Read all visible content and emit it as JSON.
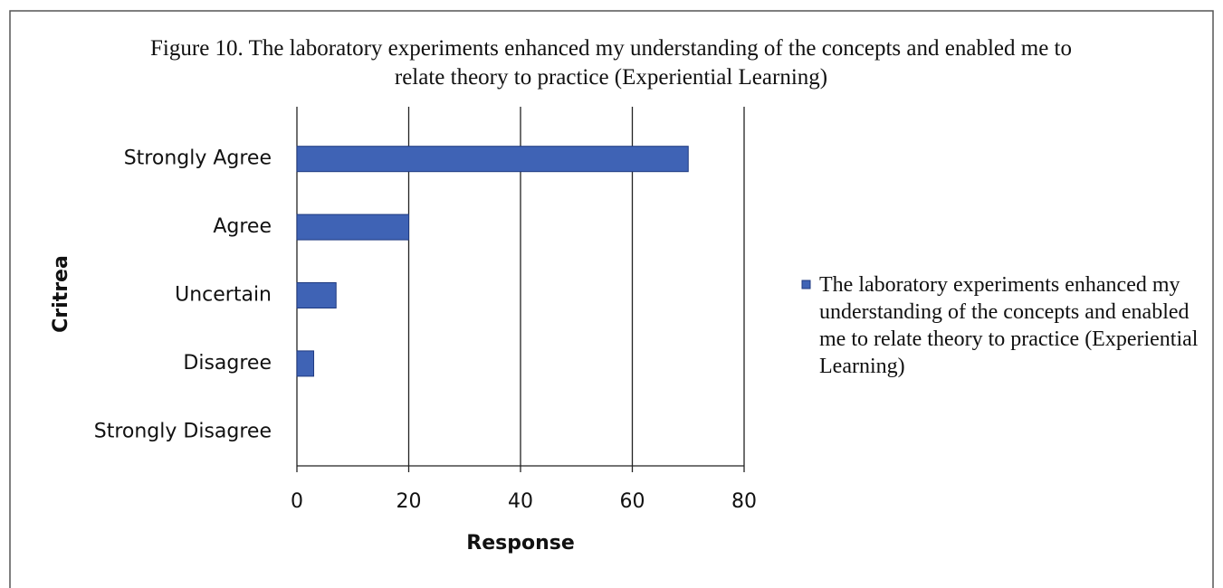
{
  "chart_data": {
    "type": "barh",
    "title": "Figure 10. The laboratory experiments enhanced my understanding of the concepts and enabled me to relate theory to practice (Experiential Learning)",
    "xlabel": "Response",
    "ylabel": "Critrea",
    "categories": [
      "Strongly Agree",
      "Agree",
      "Uncertain",
      "Disagree",
      "Strongly Disagree"
    ],
    "series": [
      {
        "name": "The laboratory experiments enhanced my understanding of the concepts and enabled me to relate theory to practice (Experiential Learning)",
        "color": "#3f63b5",
        "values": [
          70,
          20,
          7,
          3,
          0
        ]
      }
    ],
    "xlim": [
      0,
      80
    ],
    "xticks": [
      0,
      20,
      40,
      60,
      80
    ],
    "grid": true,
    "legend": "right"
  }
}
